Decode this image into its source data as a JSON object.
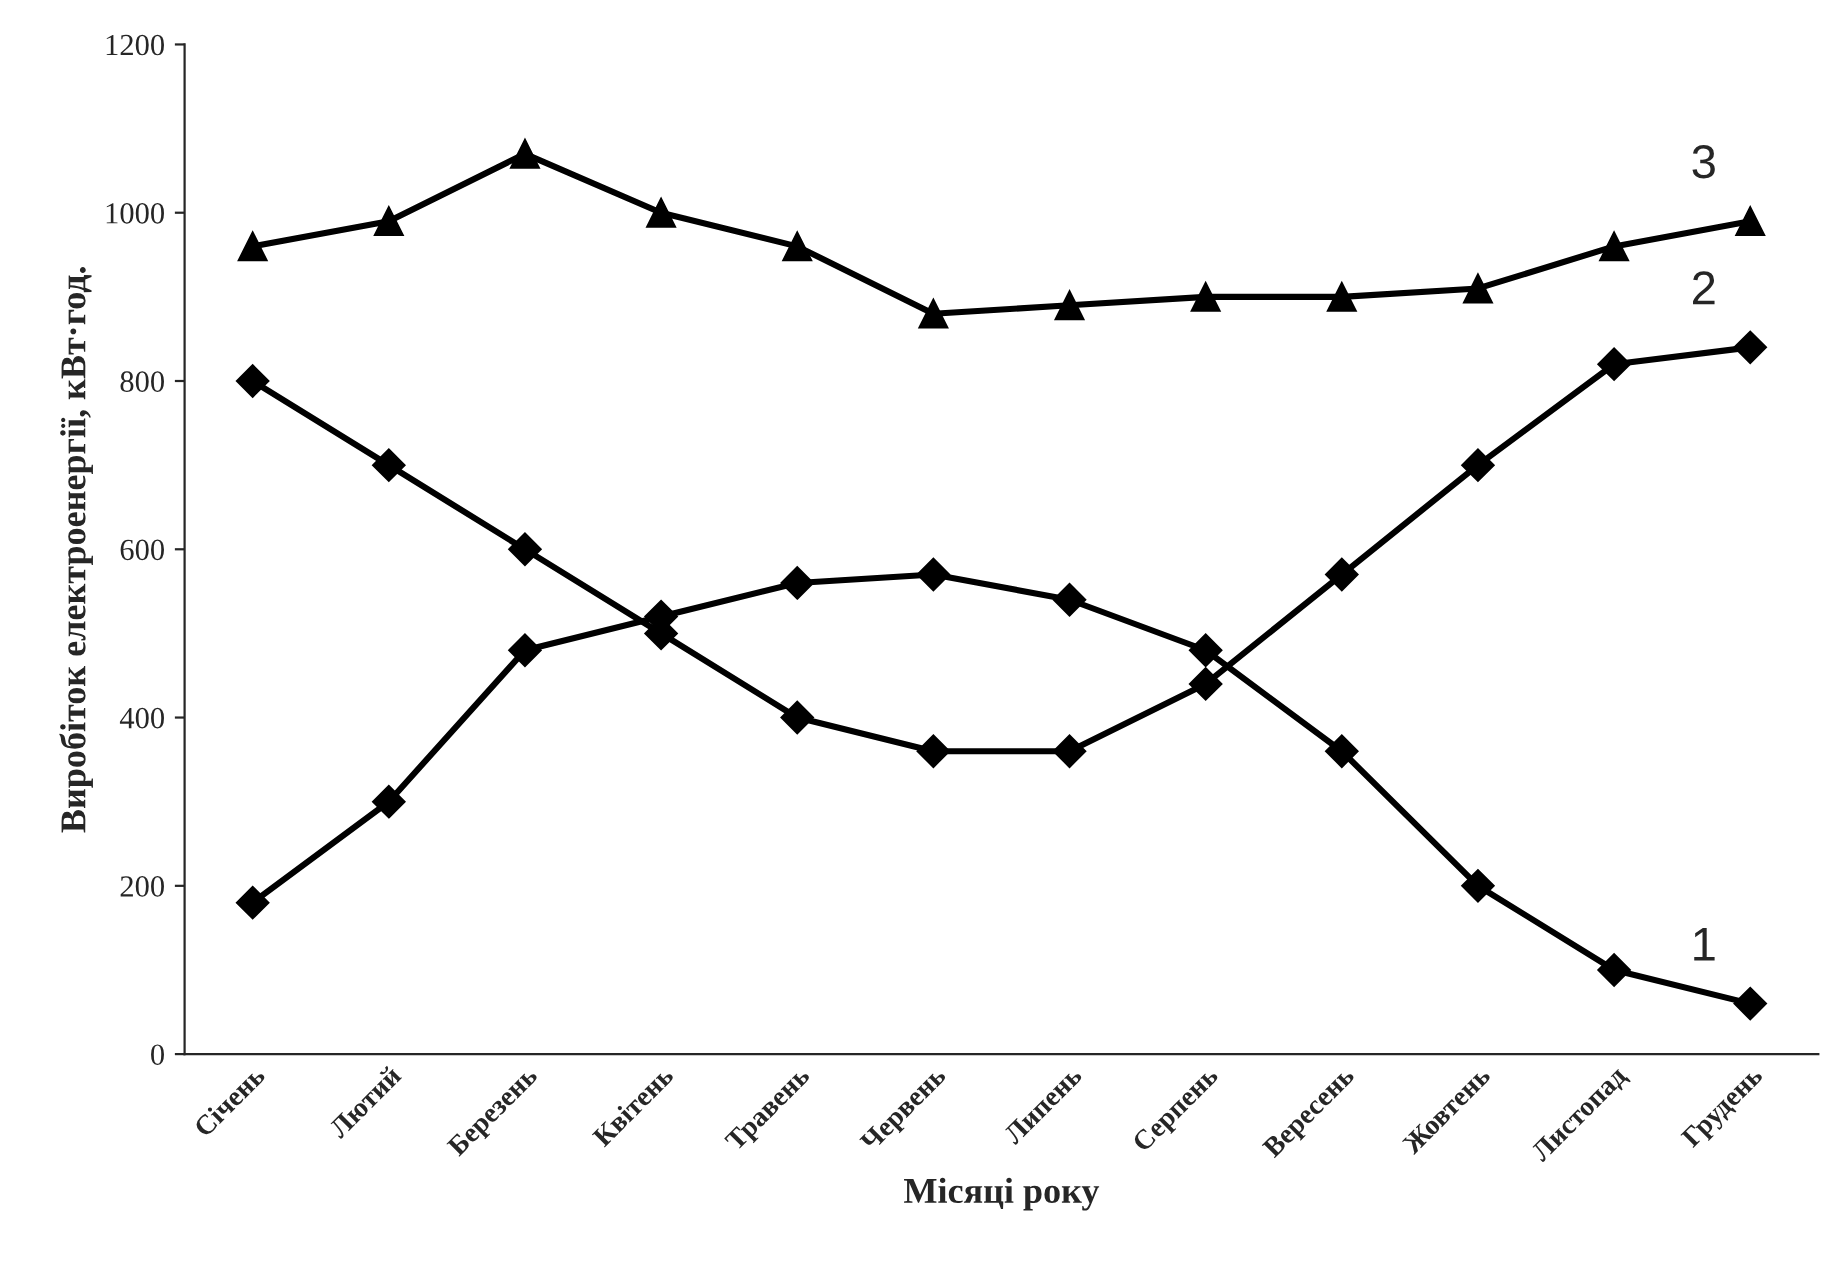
{
  "chart_data": {
    "type": "line",
    "xlabel": "Місяці року",
    "ylabel": "Виробіток електроенергії, кВт·год.",
    "categories": [
      "Січень",
      "Лютий",
      "Березень",
      "Квітень",
      "Травень",
      "Червень",
      "Липень",
      "Серпень",
      "Вересень",
      "Жовтень",
      "Листопад",
      "Грудень"
    ],
    "series": [
      {
        "name": "1",
        "color": "#000000",
        "marker": "diamond",
        "values": [
          180,
          300,
          480,
          520,
          560,
          570,
          540,
          480,
          360,
          200,
          100,
          60
        ]
      },
      {
        "name": "2",
        "color": "#000000",
        "marker": "diamond",
        "values": [
          800,
          700,
          600,
          500,
          400,
          360,
          360,
          440,
          570,
          700,
          820,
          840
        ]
      },
      {
        "name": "3",
        "color": "#000000",
        "marker": "triangle",
        "values": [
          960,
          990,
          1070,
          1000,
          960,
          880,
          890,
          900,
          900,
          910,
          960,
          990
        ]
      }
    ],
    "ylim": [
      0,
      1200
    ],
    "yticks": [
      0,
      200,
      400,
      600,
      800,
      1000,
      1200
    ],
    "grid": false,
    "legend": false,
    "line_style": "solid"
  }
}
